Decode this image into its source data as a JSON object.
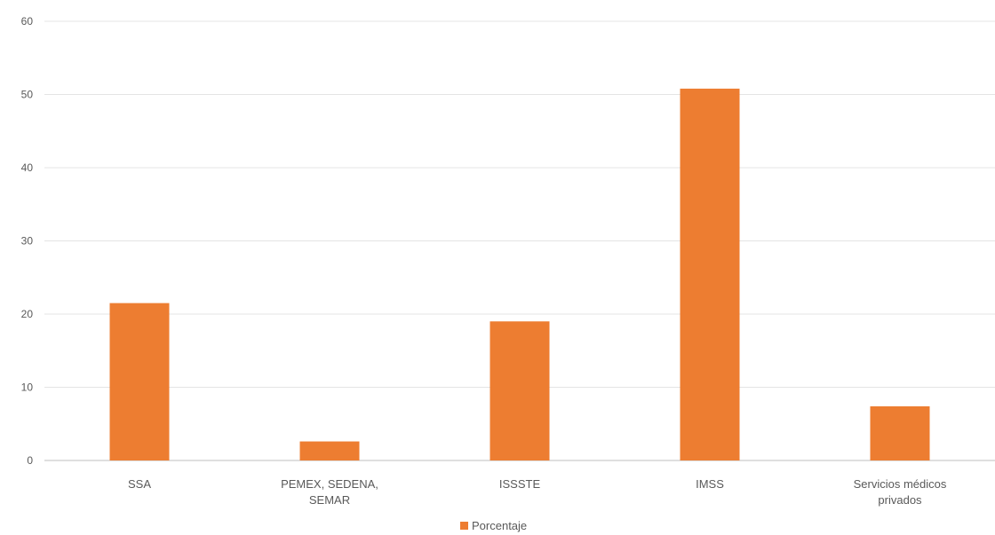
{
  "chart_data": {
    "type": "bar",
    "title": "",
    "xlabel": "",
    "ylabel": "",
    "categories": [
      [
        "SSA"
      ],
      [
        "PEMEX, SEDENA,",
        "SEMAR"
      ],
      [
        "ISSSTE"
      ],
      [
        "IMSS"
      ],
      [
        "Servicios médicos",
        "privados"
      ]
    ],
    "series": [
      {
        "name": "Porcentaje",
        "color": "#ed7d31",
        "values": [
          21.5,
          2.6,
          19.0,
          50.8,
          7.4
        ]
      }
    ],
    "ylim": [
      0,
      60
    ],
    "yticks": [
      0,
      10,
      20,
      30,
      40,
      50,
      60
    ],
    "grid": true,
    "legend_position": "bottom"
  }
}
